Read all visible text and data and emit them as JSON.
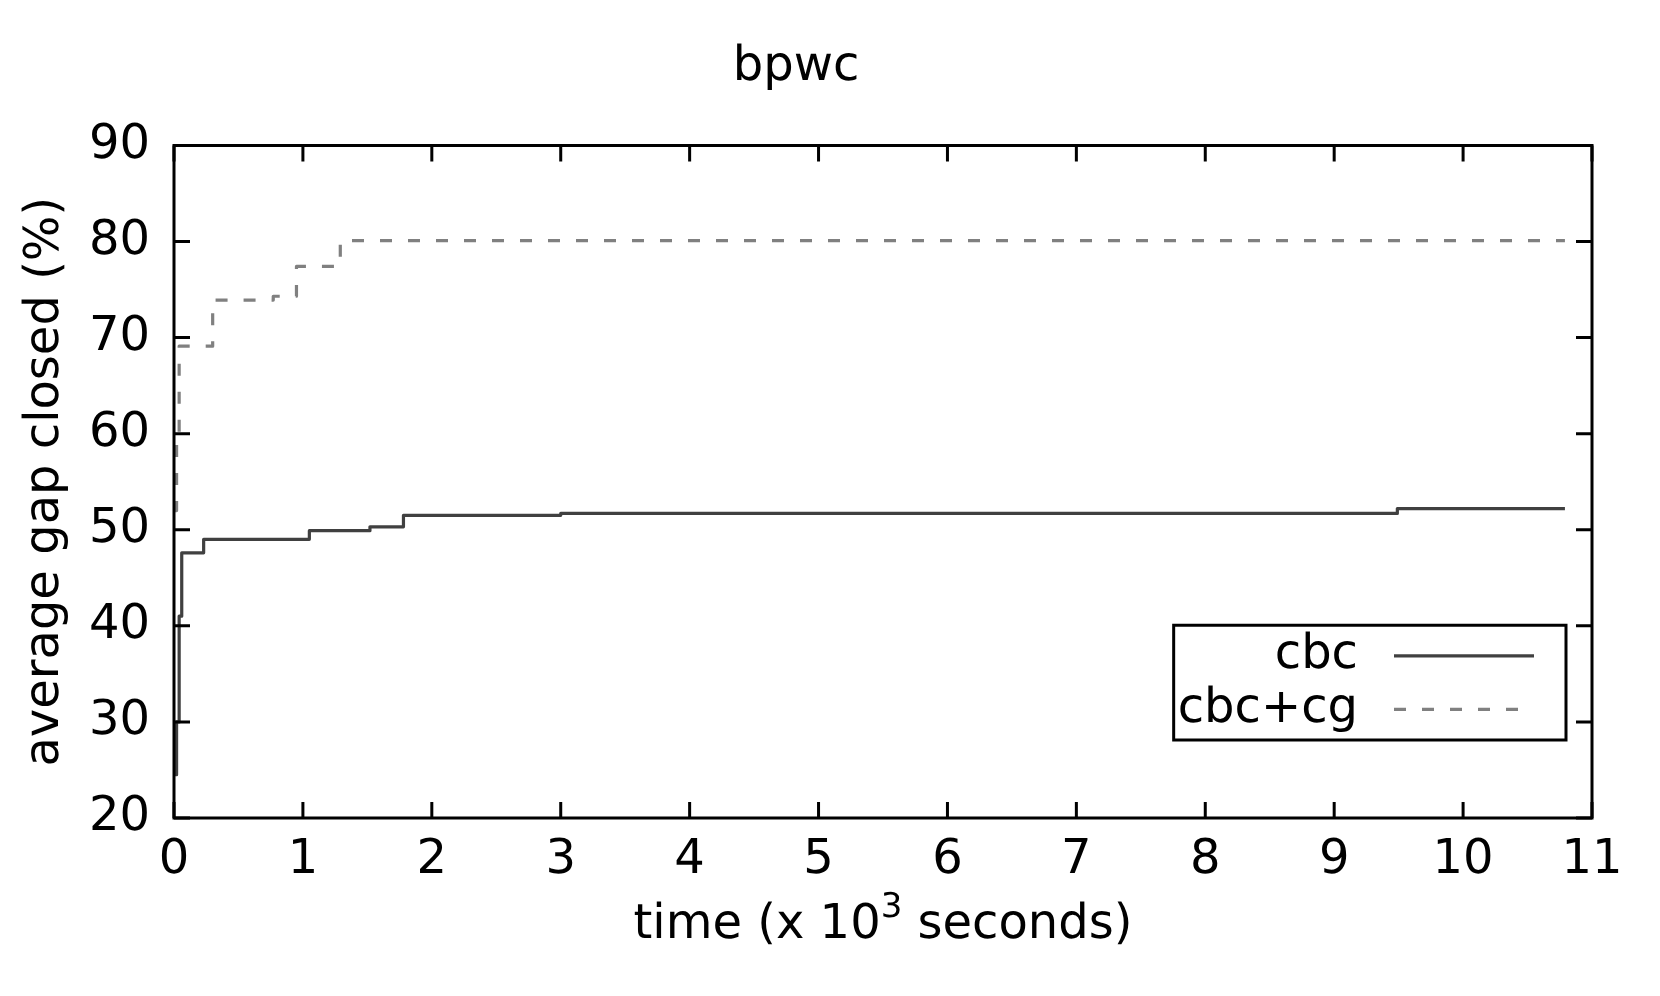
{
  "chart_data": {
    "type": "step",
    "title": "bpwc",
    "xlabel": "time (x 10$^{3}$ seconds)",
    "ylabel": "average gap closed (%)",
    "xlim": [
      0,
      11
    ],
    "ylim": [
      20,
      90
    ],
    "xticks": [
      0,
      1,
      2,
      3,
      4,
      5,
      6,
      7,
      8,
      9,
      10,
      11
    ],
    "yticks": [
      20,
      30,
      40,
      50,
      60,
      70,
      80,
      90
    ],
    "legend": "bottom right",
    "series": [
      {
        "name": "cbc",
        "color": "#404040",
        "line_style": "solid",
        "x": [
          0,
          0.02,
          0.04,
          0.06,
          0.23,
          1.05,
          1.52,
          1.78,
          3.0,
          9.49,
          10.79
        ],
        "values": [
          24.5,
          30,
          41,
          47.6,
          49.0,
          49.9,
          50.3,
          51.5,
          51.7,
          52.2,
          52.2
        ]
      },
      {
        "name": "cbc+cg",
        "color": "#808080",
        "line_style": "dashed",
        "x": [
          0,
          0.02,
          0.04,
          0.3,
          0.77,
          0.95,
          1.29,
          10.79
        ],
        "values": [
          52,
          60,
          69.1,
          73.9,
          74.3,
          77.4,
          80.1,
          80.1
        ]
      }
    ]
  }
}
